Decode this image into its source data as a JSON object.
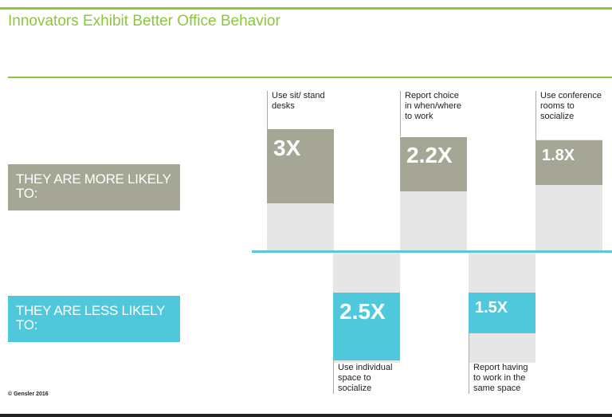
{
  "title": "Innovators Exhibit Better Office Behavior",
  "row_labels": {
    "more": "THEY ARE MORE LIKELY TO:",
    "less": "THEY ARE LESS LIKELY TO:"
  },
  "copyright": "© Gensler 2016",
  "colors": {
    "accent_green": "#8cc63f",
    "more_gray": "#a6a696",
    "less_blue": "#4fc8dc",
    "track_gray": "#e6e6e6"
  },
  "chart_data": {
    "type": "bar",
    "title": "Innovators Exhibit Better Office Behavior",
    "unit": "X",
    "series": [
      {
        "name": "THEY ARE MORE LIKELY TO:",
        "direction": "up",
        "bars": [
          {
            "label": "Use sit/ stand desks",
            "value": 3.0,
            "display": "3X"
          },
          {
            "label": "Report choice in when/where to work",
            "value": 2.2,
            "display": "2.2X"
          },
          {
            "label": "Use conference rooms to socialize",
            "value": 1.8,
            "display": "1.8X"
          }
        ]
      },
      {
        "name": "THEY ARE LESS LIKELY TO:",
        "direction": "down",
        "bars": [
          {
            "label": "Use individual space to socialize",
            "value": 2.5,
            "display": "2.5X"
          },
          {
            "label": "Report having to work in the same space",
            "value": 1.5,
            "display": "1.5X"
          }
        ]
      }
    ]
  }
}
